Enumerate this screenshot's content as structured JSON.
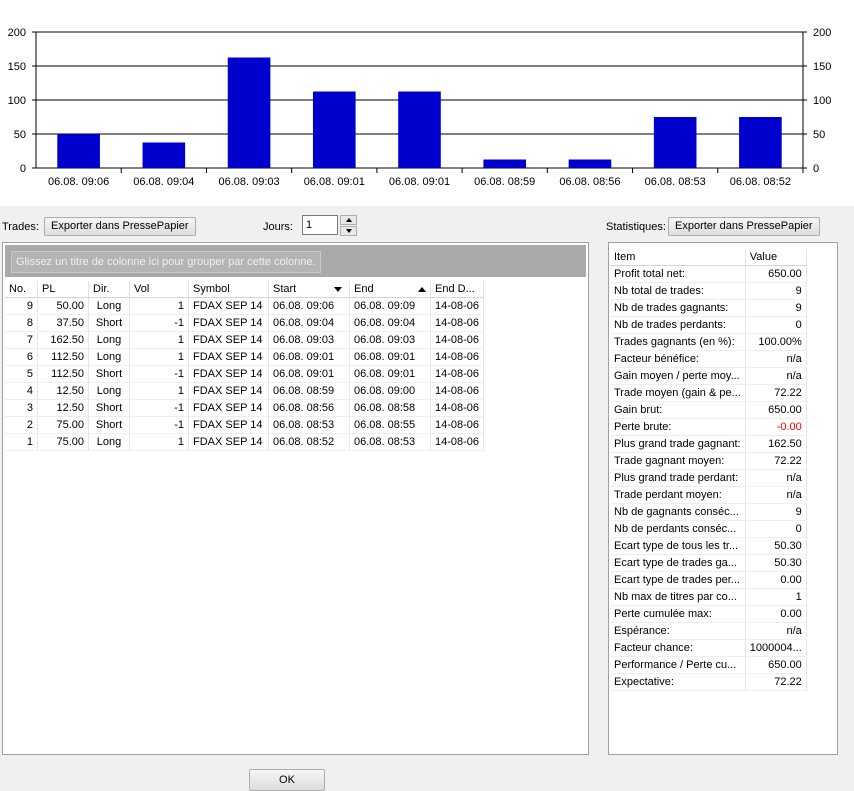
{
  "chart_data": {
    "type": "bar",
    "categories": [
      "06.08. 09:06",
      "06.08. 09:04",
      "06.08. 09:03",
      "06.08. 09:01",
      "06.08. 09:01",
      "06.08. 08:59",
      "06.08. 08:56",
      "06.08. 08:53",
      "06.08. 08:52"
    ],
    "values": [
      50,
      37.5,
      162.5,
      112.5,
      112.5,
      12.5,
      12.5,
      75,
      75
    ],
    "ylim": [
      0,
      200
    ],
    "yticks": [
      0,
      50,
      100,
      150,
      200
    ],
    "grid": true,
    "bar_color": "#0000cc"
  },
  "trades_section": {
    "label": "Trades:",
    "export_button": "Exporter dans PressePapier",
    "days_label": "Jours:",
    "days_value": "1",
    "group_hint": "Glissez un titre de colonne ici pour grouper par cette colonne."
  },
  "trades_table": {
    "columns": [
      "No.",
      "PL",
      "Dir.",
      "Vol",
      "Symbol",
      "Start",
      "End",
      "End D..."
    ],
    "rows": [
      [
        "9",
        "50.00",
        "Long",
        "1",
        "FDAX SEP 14",
        "06.08. 09:06",
        "06.08. 09:09",
        "14-08-06"
      ],
      [
        "8",
        "37.50",
        "Short",
        "-1",
        "FDAX SEP 14",
        "06.08. 09:04",
        "06.08. 09:04",
        "14-08-06"
      ],
      [
        "7",
        "162.50",
        "Long",
        "1",
        "FDAX SEP 14",
        "06.08. 09:03",
        "06.08. 09:03",
        "14-08-06"
      ],
      [
        "6",
        "112.50",
        "Long",
        "1",
        "FDAX SEP 14",
        "06.08. 09:01",
        "06.08. 09:01",
        "14-08-06"
      ],
      [
        "5",
        "112.50",
        "Short",
        "-1",
        "FDAX SEP 14",
        "06.08. 09:01",
        "06.08. 09:01",
        "14-08-06"
      ],
      [
        "4",
        "12.50",
        "Long",
        "1",
        "FDAX SEP 14",
        "06.08. 08:59",
        "06.08. 09:00",
        "14-08-06"
      ],
      [
        "3",
        "12.50",
        "Short",
        "-1",
        "FDAX SEP 14",
        "06.08. 08:56",
        "06.08. 08:58",
        "14-08-06"
      ],
      [
        "2",
        "75.00",
        "Short",
        "-1",
        "FDAX SEP 14",
        "06.08. 08:53",
        "06.08. 08:55",
        "14-08-06"
      ],
      [
        "1",
        "75.00",
        "Long",
        "1",
        "FDAX SEP 14",
        "06.08. 08:52",
        "06.08. 08:53",
        "14-08-06"
      ]
    ]
  },
  "stats_section": {
    "label": "Statistiques:",
    "export_button": "Exporter dans PressePapier"
  },
  "stats_table": {
    "columns": [
      "Item",
      "Value"
    ],
    "rows": [
      [
        "Profit total net:",
        "650.00"
      ],
      [
        "Nb total de trades:",
        "9"
      ],
      [
        "Nb de trades gagnants:",
        "9"
      ],
      [
        "Nb de trades perdants:",
        "0"
      ],
      [
        "Trades gagnants (en %):",
        "100.00%"
      ],
      [
        "Facteur bénéfice:",
        "n/a"
      ],
      [
        "Gain moyen / perte moy...",
        "n/a"
      ],
      [
        "Trade moyen (gain & pe...",
        "72.22"
      ],
      [
        "Gain brut:",
        "650.00"
      ],
      [
        "Perte brute:",
        "-0.00"
      ],
      [
        "Plus grand trade gagnant:",
        "162.50"
      ],
      [
        "Trade gagnant moyen:",
        "72.22"
      ],
      [
        "Plus grand trade perdant:",
        "n/a"
      ],
      [
        "Trade perdant moyen:",
        "n/a"
      ],
      [
        "Nb de gagnants conséc...",
        "9"
      ],
      [
        "Nb de perdants conséc...",
        "0"
      ],
      [
        "Ecart type de tous les tr...",
        "50.30"
      ],
      [
        "Ecart type de trades ga...",
        "50.30"
      ],
      [
        "Ecart type de trades per...",
        "0.00"
      ],
      [
        "Nb max de titres par co...",
        "1"
      ],
      [
        "Perte cumulée max:",
        "0.00"
      ],
      [
        "Espérance:",
        "n/a"
      ],
      [
        "Facteur chance:",
        "1000004..."
      ],
      [
        "Performance / Perte cu...",
        "650.00"
      ],
      [
        "Expectative:",
        "72.22"
      ]
    ],
    "negative_color": "#ff0000"
  },
  "ok_button": "OK"
}
